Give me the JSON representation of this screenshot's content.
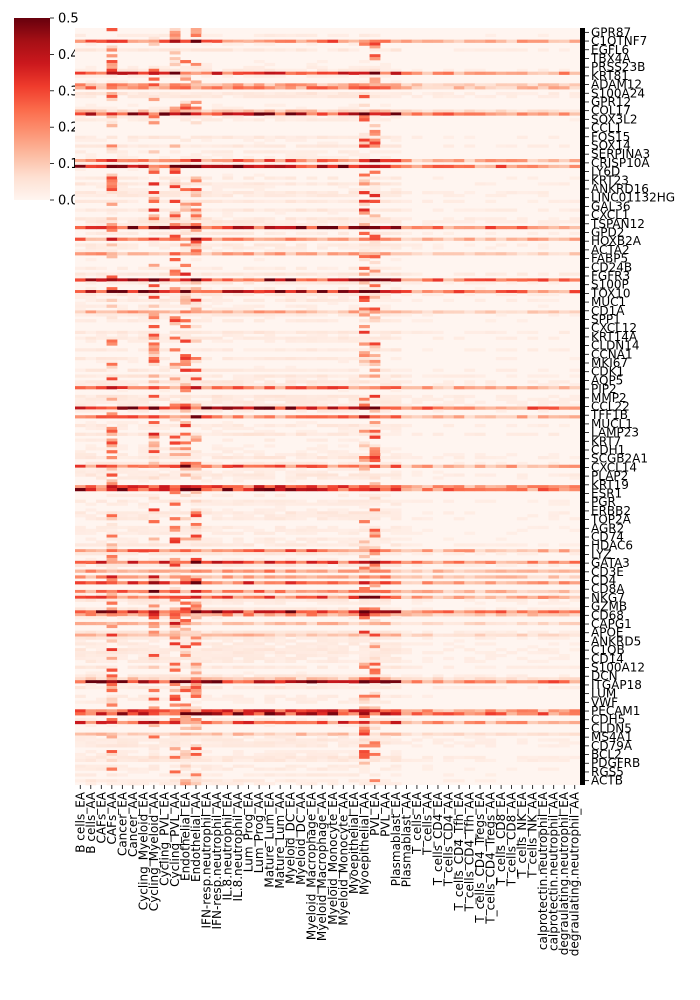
{
  "chart_data": {
    "type": "heatmap",
    "title": "",
    "xlabel": "",
    "ylabel": "",
    "colormap": "Reds",
    "colorbar": {
      "vmin": 0.0,
      "vmax": 0.5,
      "ticks": [
        "0.0",
        "0.1",
        "0.2",
        "0.3",
        "0.4",
        "0.5"
      ],
      "placement": "top-left"
    },
    "x_categories": [
      "B cells_EA",
      "B cells_AA",
      "CAFs_EA",
      "CAFs_AA",
      "Cancer_EA",
      "Cancer_AA",
      "Cycling_Myeloid_EA",
      "Cycling_Myeloid_AA",
      "Cycling_PVL_EA",
      "Cycling_PVL_AA",
      "Endothelial_EA",
      "Endothelial_AA",
      "IFN-resp.neutrophil_EA",
      "IFN-resp.neutrophil_AA",
      "IL.8.neutrophil_EA",
      "IL.8.neutrophil_AA",
      "Lum_Prog_EA",
      "Lum_Prog_AA",
      "Mature_Lum_EA",
      "Mature_Lum_AA",
      "Myeloid_DC_EA",
      "Myeloid_DC_AA",
      "Myeloid_Macrophage_EA",
      "Myeloid_Macrophage_AA",
      "Myeloid_Monocyte_EA",
      "Myeloid_Monocyte_AA",
      "Myoepithelial_EA",
      "Myoepithelial_AA",
      "PVL_EA",
      "PVL_AA",
      "Plasmablast_EA",
      "Plasmablast_AA",
      "T_cells_EA",
      "T_cells_AA",
      "T_cells_CD4_EA",
      "T_cells_CD4_AA",
      "T_cells_CD4_Tfh_EA",
      "T_cells_CD4_Tfh_AA",
      "T_cells_CD4_Tregs_EA",
      "T_cells_CD4_Tregs_AA",
      "T_cells_CD8_EA",
      "T_cells_CD8_AA",
      "T_cells_NK_EA",
      "T_cells_NK_AA",
      "calprotectin.neutrophil_EA",
      "calprotectin.neutrophil_AA",
      "degraulating.neutrophil_EA",
      "degraulating.neutrophil_AA"
    ],
    "y_labels_visible": [
      "GPR87",
      "C1QTNF7",
      "EGFL6",
      "TBX4A",
      "PRSS23B",
      "KRT81",
      "ADAM12",
      "S100A24",
      "GPR12",
      "COL17",
      "SOX3L2",
      "CCL1",
      "FOS15",
      "SOX14",
      "SERPINA3",
      "CRISP10A",
      "LY6D",
      "KRT23",
      "ANKRD16",
      "LINC01132HG",
      "GAL36",
      "CXCL1",
      "TSPAN12",
      "GPD2",
      "HOXB2A",
      "ACTA2",
      "FABP5",
      "CD24B",
      "FGFR3",
      "S100P",
      "TOX10",
      "MUC1",
      "CD1A",
      "SPP1",
      "CXCL12",
      "KRT14A",
      "CLDN14",
      "CCNA1",
      "MKI67",
      "CDK1",
      "AQP5",
      "PIP2",
      "MMP2",
      "CCL22",
      "TFF1B",
      "MUCL1",
      "LAMP23",
      "KRT7",
      "CDH1",
      "SCGB2A1",
      "CXCL14",
      "PLAP2",
      "KRT19",
      "ESR1",
      "PGR",
      "ERBB2",
      "TOP2A",
      "AGR2",
      "CD74",
      "HDAC6",
      "LYZ",
      "GATA3",
      "CD3E",
      "CD4",
      "CD8A",
      "NKG7",
      "GZMB",
      "CD68",
      "CAPG1",
      "APOE",
      "ANKRD5",
      "C1QB",
      "CD14",
      "S100A12",
      "DCN",
      "ITGAP18",
      "LUM",
      "VWF",
      "PECAM1",
      "CDH5",
      "CLDN5",
      "MS4A1",
      "CD79A",
      "BCL2",
      "PDGFRB",
      "RGS5",
      "ACTB"
    ],
    "y_row_count": 260,
    "cell_values_note": "",
    "grid": false
  }
}
